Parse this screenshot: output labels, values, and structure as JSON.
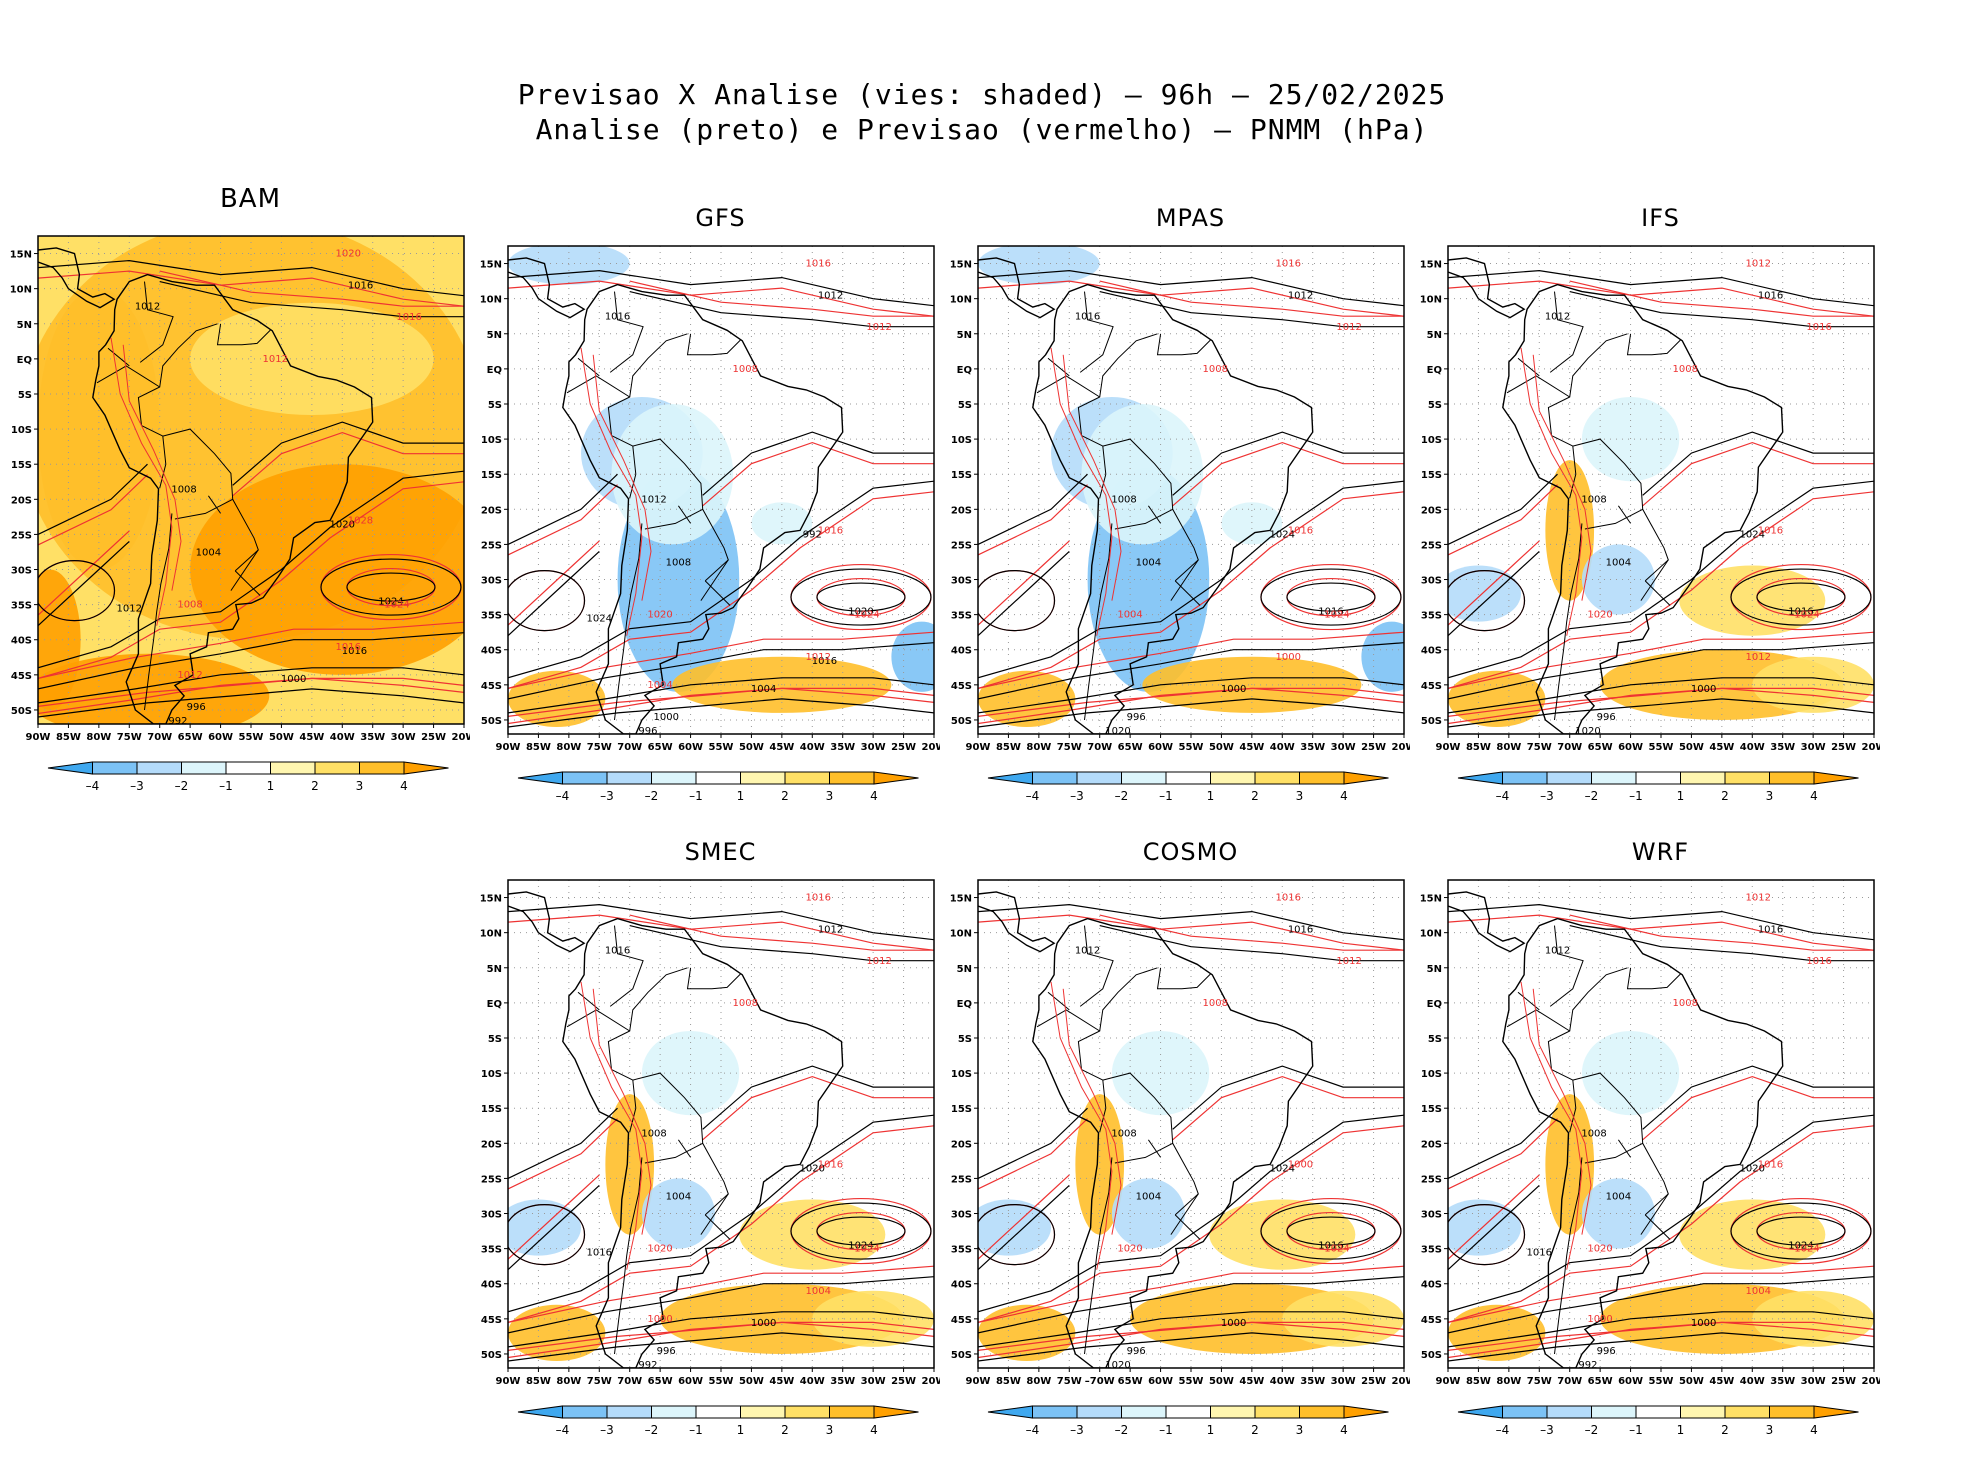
{
  "header": {
    "line1": "Previsao X Analise (vies: shaded) – 96h – 25/02/2025",
    "line2": "Analise (preto) e Previsao (vermelho) – PNMM (hPa)"
  },
  "axes": {
    "lat_labels": [
      "15N",
      "10N",
      "5N",
      "EQ",
      "5S",
      "10S",
      "15S",
      "20S",
      "25S",
      "30S",
      "35S",
      "40S",
      "45S",
      "50S"
    ],
    "lon_labels": [
      "90W",
      "85W",
      "80W",
      "75W",
      "70W",
      "65W",
      "60W",
      "55W",
      "50W",
      "45W",
      "40W",
      "35W",
      "30W",
      "25W",
      "20W"
    ],
    "lon_labels_cosmo": [
      "90W",
      "85W",
      "80W",
      "75W",
      "–70W",
      "65W",
      "60W",
      "55W",
      "50W",
      "45W",
      "40W",
      "35W",
      "30W",
      "25W",
      "20W"
    ]
  },
  "colorbar": {
    "labels": [
      "–4",
      "–3",
      "–2",
      "–1",
      "1",
      "2",
      "3",
      "4"
    ],
    "colors": [
      "#3fa8ef",
      "#7cc2f5",
      "#b4dbfa",
      "#dcf5fb",
      "#ffffff",
      "#fff6b0",
      "#ffe066",
      "#ffbf2a",
      "#ffa000"
    ]
  },
  "colors": {
    "analysis": "#000000",
    "forecast": "#ee3333",
    "bias_warm": "#ffbf2a",
    "bias_cold": "#7cc2f5"
  },
  "panels": [
    {
      "name": "BAM",
      "bias": "warm",
      "black_labels": [
        "1016",
        "1012",
        "1008",
        "1004",
        "1000",
        "996",
        "992",
        "1020",
        "1024",
        "1012",
        "1016"
      ],
      "red_labels": [
        "1020",
        "1016",
        "1012",
        "1008",
        "1024",
        "1028",
        "1016",
        "1012"
      ]
    },
    {
      "name": "GFS",
      "bias": "cold",
      "black_labels": [
        "1012",
        "1016",
        "1012",
        "1008",
        "1004",
        "1000",
        "996",
        "992",
        "1020",
        "1024",
        "1016"
      ],
      "red_labels": [
        "1016",
        "1012",
        "1008",
        "1020",
        "1024",
        "1016",
        "1012",
        "1004"
      ]
    },
    {
      "name": "MPAS",
      "bias": "cold",
      "black_labels": [
        "1012",
        "1016",
        "1008",
        "1004",
        "1000",
        "996",
        "1020",
        "1024",
        "1016"
      ],
      "red_labels": [
        "1016",
        "1012",
        "1008",
        "1004",
        "1024",
        "1016",
        "1000"
      ]
    },
    {
      "name": "IFS",
      "bias": "mixed",
      "black_labels": [
        "1016",
        "1012",
        "1008",
        "1004",
        "1000",
        "996",
        "1020",
        "1024",
        "1016"
      ],
      "red_labels": [
        "1012",
        "1016",
        "1008",
        "1020",
        "1024",
        "1016",
        "1012"
      ]
    },
    {
      "name": "SMEC",
      "bias": "mixed",
      "black_labels": [
        "1012",
        "1016",
        "1008",
        "1004",
        "1000",
        "996",
        "992",
        "1020",
        "1024",
        "1016"
      ],
      "red_labels": [
        "1016",
        "1012",
        "1008",
        "1020",
        "1024",
        "1016",
        "1004",
        "1000"
      ]
    },
    {
      "name": "COSMO",
      "bias": "mixed",
      "black_labels": [
        "1016",
        "1012",
        "1008",
        "1004",
        "1000",
        "996",
        "1020",
        "1024",
        "1016"
      ],
      "red_labels": [
        "1016",
        "1012",
        "1008",
        "1020",
        "1024",
        "1000"
      ]
    },
    {
      "name": "WRF",
      "bias": "mixed",
      "black_labels": [
        "1016",
        "1012",
        "1008",
        "1004",
        "1000",
        "996",
        "992",
        "1020",
        "1024",
        "1016"
      ],
      "red_labels": [
        "1012",
        "1016",
        "1008",
        "1020",
        "1024",
        "1016",
        "1004",
        "1000"
      ]
    }
  ]
}
